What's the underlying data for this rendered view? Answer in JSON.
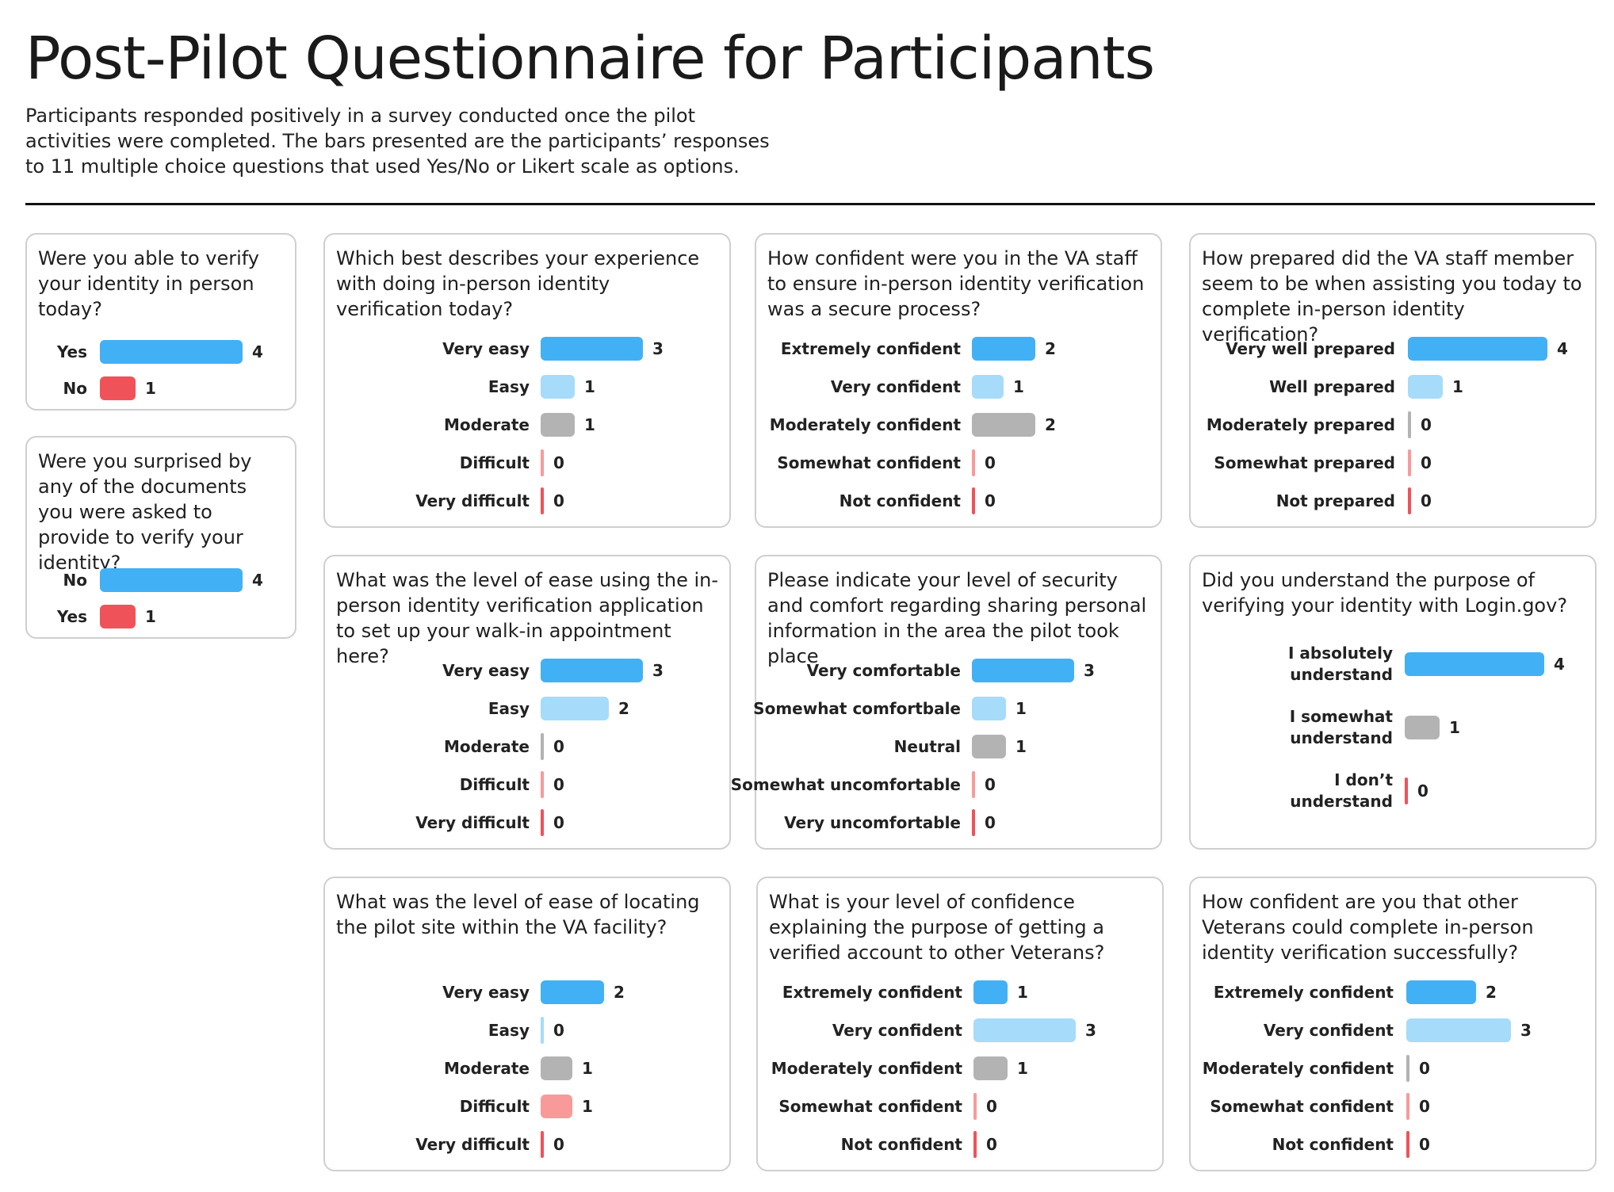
{
  "title": "Post-Pilot Questionnaire for Participants",
  "subtitle": "Participants responded positively in a survey conducted once the pilot activities were completed. The bars presented are the participants’ responses to 11 multiple choice questions that used Yes/No or Likert scale as options.",
  "colors": {
    "strong_positive": "#42b0f5",
    "positive": "#a6dbfa",
    "neutral": "#b3b3b3",
    "negative": "#f99a9a",
    "strong_negative": "#f0525a"
  },
  "chart_data": [
    {
      "type": "bar",
      "question": "Were you able to verify your identity in person today?",
      "categories": [
        "Yes",
        "No"
      ],
      "values": [
        4,
        1
      ],
      "tones": [
        "strong_positive",
        "strong_negative"
      ]
    },
    {
      "type": "bar",
      "question": "Were you surprised by any of the documents you were asked to provide to verify your identity?",
      "categories": [
        "No",
        "Yes"
      ],
      "values": [
        4,
        1
      ],
      "tones": [
        "strong_positive",
        "strong_negative"
      ]
    },
    {
      "type": "bar",
      "question": "Which best describes your experience with doing in-person identity verification today?",
      "categories": [
        "Very easy",
        "Easy",
        "Moderate",
        "Difficult",
        "Very difficult"
      ],
      "values": [
        3,
        1,
        1,
        0,
        0
      ],
      "tones": [
        "strong_positive",
        "positive",
        "neutral",
        "negative",
        "strong_negative"
      ]
    },
    {
      "type": "bar",
      "question": "How confident were you in the VA staff to ensure in-person identity verification was a secure process?",
      "categories": [
        "Extremely confident",
        "Very confident",
        "Moderately confident",
        "Somewhat confident",
        "Not confident"
      ],
      "values": [
        2,
        1,
        2,
        0,
        0
      ],
      "tones": [
        "strong_positive",
        "positive",
        "neutral",
        "negative",
        "strong_negative"
      ]
    },
    {
      "type": "bar",
      "question": "How prepared did the VA staff member seem to be when assisting you today to complete in-person identity verification?",
      "categories": [
        "Very well prepared",
        "Well prepared",
        "Moderately prepared",
        "Somewhat prepared",
        "Not prepared"
      ],
      "values": [
        4,
        1,
        0,
        0,
        0
      ],
      "tones": [
        "strong_positive",
        "positive",
        "neutral",
        "negative",
        "strong_negative"
      ]
    },
    {
      "type": "bar",
      "question": "What was the level of ease using the in-person identity verification application to set up your walk-in appointment here?",
      "categories": [
        "Very easy",
        "Easy",
        "Moderate",
        "Difficult",
        "Very difficult"
      ],
      "values": [
        3,
        2,
        0,
        0,
        0
      ],
      "tones": [
        "strong_positive",
        "positive",
        "neutral",
        "negative",
        "strong_negative"
      ]
    },
    {
      "type": "bar",
      "question": "Please indicate your level of security and comfort regarding sharing personal information in the area the pilot took place",
      "categories": [
        "Very comfortable",
        "Somewhat comfortbale",
        "Neutral",
        "Somewhat uncomfortable",
        "Very uncomfortable"
      ],
      "values": [
        3,
        1,
        1,
        0,
        0
      ],
      "tones": [
        "strong_positive",
        "positive",
        "neutral",
        "negative",
        "strong_negative"
      ]
    },
    {
      "type": "bar",
      "question": "Did you understand the purpose of verifying your identity with Login.gov?",
      "categories": [
        "I absolutely understand",
        "I somewhat understand",
        "I don’t understand"
      ],
      "values": [
        4,
        1,
        0
      ],
      "tones": [
        "strong_positive",
        "neutral",
        "strong_negative"
      ]
    },
    {
      "type": "bar",
      "question": "What was the level of ease of locating the pilot site within the VA facility?",
      "categories": [
        "Very easy",
        "Easy",
        "Moderate",
        "Difficult",
        "Very difficult"
      ],
      "values": [
        2,
        0,
        1,
        1,
        0
      ],
      "tones": [
        "strong_positive",
        "positive",
        "neutral",
        "negative",
        "strong_negative"
      ]
    },
    {
      "type": "bar",
      "question": "What is your level of confidence explaining the purpose of getting a verified account to other Veterans?",
      "categories": [
        "Extremely confident",
        "Very confident",
        "Moderately confident",
        "Somewhat confident",
        "Not confident"
      ],
      "values": [
        1,
        3,
        1,
        0,
        0
      ],
      "tones": [
        "strong_positive",
        "positive",
        "neutral",
        "negative",
        "strong_negative"
      ]
    },
    {
      "type": "bar",
      "question": "How confident are you that other Veterans could complete in-person identity verification successfully?",
      "categories": [
        "Extremely confident",
        "Very confident",
        "Moderately confident",
        "Somewhat confident",
        "Not confident"
      ],
      "values": [
        2,
        3,
        0,
        0,
        0
      ],
      "tones": [
        "strong_positive",
        "positive",
        "neutral",
        "negative",
        "strong_negative"
      ]
    }
  ]
}
